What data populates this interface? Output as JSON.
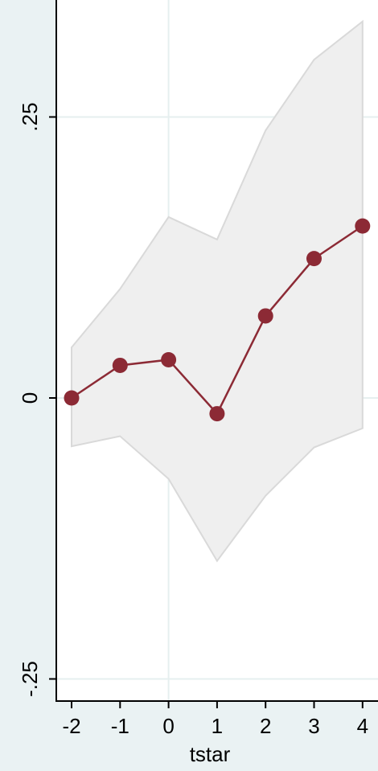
{
  "chart_data": {
    "type": "line",
    "title": "",
    "xlabel": "tstar",
    "ylabel": "",
    "x": [
      -2,
      -1,
      0,
      1,
      2,
      3,
      4
    ],
    "xlim": [
      -2.3,
      4.3
    ],
    "ylim": [
      -0.255,
      0.35
    ],
    "x_ticks": [
      -2,
      -1,
      0,
      1,
      2,
      3,
      4
    ],
    "x_tick_labels": [
      "-2",
      "-1",
      "0",
      "1",
      "2",
      "3",
      "4"
    ],
    "y_ticks": [
      -0.25,
      0,
      0.25
    ],
    "y_tick_labels": [
      "-.25",
      "0",
      ".25"
    ],
    "grid": true,
    "legend": "none",
    "series": [
      {
        "values": [
          0.0,
          0.029,
          0.034,
          -0.014,
          0.073,
          0.124,
          0.153
        ],
        "color": "#8c2a35",
        "marker": "circle"
      }
    ],
    "band": {
      "lower": [
        -0.043,
        -0.034,
        -0.072,
        -0.145,
        -0.087,
        -0.044,
        -0.027
      ],
      "upper": [
        0.045,
        0.097,
        0.161,
        0.141,
        0.238,
        0.301,
        0.335
      ],
      "color": "#efefef",
      "edge_color": "#d9d9d9"
    }
  },
  "colors": {
    "background": "#eaf2f3",
    "plot_background": "#ffffff",
    "grid": "#e6efef",
    "axis": "#000000",
    "series": "#8c2a35"
  }
}
